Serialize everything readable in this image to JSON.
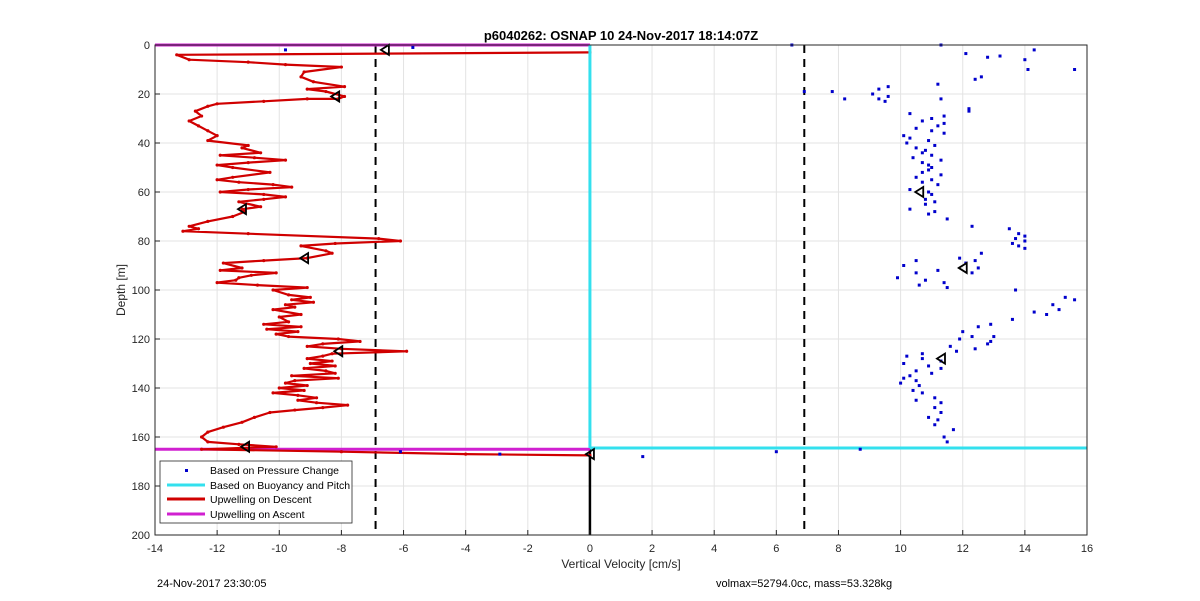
{
  "chart_data": {
    "type": "scatter",
    "title": "p6040262: OSNAP 10 24-Nov-2017 18:14:07Z",
    "xlabel": "Vertical Velocity [cm/s]",
    "ylabel": "Depth [m]",
    "xlim": [
      -14,
      16
    ],
    "ylim": [
      0,
      200
    ],
    "y_reversed": true,
    "grid": true,
    "xticks": [
      -14,
      -12,
      -10,
      -8,
      -6,
      -4,
      -2,
      0,
      2,
      4,
      6,
      8,
      10,
      12,
      14,
      16
    ],
    "yticks": [
      0,
      20,
      40,
      60,
      80,
      100,
      120,
      140,
      160,
      180,
      200
    ],
    "legend": {
      "placement": "bottom-left",
      "entries": [
        {
          "label": "Based on Pressure Change",
          "color": "#0000cc",
          "style": "dot"
        },
        {
          "label": "Based on Buoyancy and Pitch",
          "color": "#33e0ee",
          "style": "line"
        },
        {
          "label": "Upwelling on Descent",
          "color": "#d00000",
          "style": "line"
        },
        {
          "label": "Upwelling on Ascent",
          "color": "#d020d0",
          "style": "line"
        }
      ]
    },
    "reference_lines": {
      "vertical_dashed": [
        -6.9,
        6.9
      ],
      "horizontal_ascent_depths": [
        0,
        165
      ],
      "buoyancy_pitch_depth": 164.5
    },
    "series": [
      {
        "name": "Upwelling on Descent",
        "color": "#d00000",
        "points": [
          [
            0,
            3
          ],
          [
            -13.3,
            4
          ],
          [
            -12.9,
            6
          ],
          [
            -11,
            7
          ],
          [
            -9.8,
            8
          ],
          [
            -8,
            9
          ],
          [
            -9.2,
            11
          ],
          [
            -9.3,
            13
          ],
          [
            -8.9,
            15
          ],
          [
            -7.9,
            17
          ],
          [
            -9.1,
            18
          ],
          [
            -8.5,
            19
          ],
          [
            -7.9,
            21
          ],
          [
            -8.1,
            22
          ],
          [
            -9.1,
            22
          ],
          [
            -10.5,
            23
          ],
          [
            -12,
            24
          ],
          [
            -12.3,
            25
          ],
          [
            -12.7,
            27
          ],
          [
            -12.5,
            29
          ],
          [
            -12.9,
            31
          ],
          [
            -12.6,
            33
          ],
          [
            -12.3,
            35
          ],
          [
            -12,
            37
          ],
          [
            -12.3,
            39
          ],
          [
            -11,
            41
          ],
          [
            -11.2,
            42
          ],
          [
            -10.6,
            44
          ],
          [
            -11.9,
            45
          ],
          [
            -10.8,
            46
          ],
          [
            -9.8,
            47
          ],
          [
            -11,
            48
          ],
          [
            -12,
            49
          ],
          [
            -11.5,
            50
          ],
          [
            -10.3,
            52
          ],
          [
            -11.5,
            54
          ],
          [
            -12,
            55
          ],
          [
            -11.3,
            56
          ],
          [
            -10.2,
            57
          ],
          [
            -9.6,
            58
          ],
          [
            -11,
            59
          ],
          [
            -11.9,
            60
          ],
          [
            -10.5,
            61
          ],
          [
            -9.8,
            62
          ],
          [
            -10.5,
            63
          ],
          [
            -11.3,
            64
          ],
          [
            -10.6,
            66
          ],
          [
            -11.2,
            67
          ],
          [
            -11.1,
            68
          ],
          [
            -11.5,
            70
          ],
          [
            -12.3,
            72
          ],
          [
            -12.9,
            74
          ],
          [
            -12.6,
            75
          ],
          [
            -13.1,
            76
          ],
          [
            -11,
            77
          ],
          [
            -6.8,
            79
          ],
          [
            -6.1,
            80
          ],
          [
            -8.2,
            81
          ],
          [
            -9.3,
            82
          ],
          [
            -8.5,
            84
          ],
          [
            -8.3,
            85
          ],
          [
            -9.1,
            87
          ],
          [
            -10.5,
            88
          ],
          [
            -11.8,
            89
          ],
          [
            -11.2,
            91
          ],
          [
            -11.9,
            92
          ],
          [
            -10.1,
            93
          ],
          [
            -10.9,
            94
          ],
          [
            -11.3,
            95
          ],
          [
            -11.4,
            96
          ],
          [
            -12,
            97
          ],
          [
            -10.7,
            98
          ],
          [
            -9.1,
            99
          ],
          [
            -10.2,
            100
          ],
          [
            -9.7,
            102
          ],
          [
            -9,
            103
          ],
          [
            -9.6,
            104
          ],
          [
            -8.9,
            105
          ],
          [
            -9.8,
            106
          ],
          [
            -9.5,
            107
          ],
          [
            -10.2,
            108
          ],
          [
            -9.3,
            110
          ],
          [
            -10,
            111
          ],
          [
            -9.7,
            113
          ],
          [
            -10.5,
            114
          ],
          [
            -9.3,
            115
          ],
          [
            -10.4,
            116
          ],
          [
            -9.4,
            117
          ],
          [
            -10.1,
            118
          ],
          [
            -9.7,
            119
          ],
          [
            -8.1,
            120
          ],
          [
            -7.4,
            121
          ],
          [
            -8.6,
            122
          ],
          [
            -9.1,
            123
          ],
          [
            -8,
            124
          ],
          [
            -5.9,
            125
          ],
          [
            -8.3,
            126
          ],
          [
            -8.6,
            127
          ],
          [
            -9.1,
            128
          ],
          [
            -8.3,
            129
          ],
          [
            -9,
            130
          ],
          [
            -8.2,
            131
          ],
          [
            -9.2,
            132
          ],
          [
            -8.5,
            133
          ],
          [
            -8.2,
            134
          ],
          [
            -9.6,
            135
          ],
          [
            -8.1,
            136
          ],
          [
            -9.5,
            137
          ],
          [
            -9.8,
            138
          ],
          [
            -9.1,
            139
          ],
          [
            -10,
            140
          ],
          [
            -9.2,
            141
          ],
          [
            -10.2,
            142
          ],
          [
            -9.4,
            143
          ],
          [
            -8.8,
            144
          ],
          [
            -9.4,
            145
          ],
          [
            -8.8,
            146
          ],
          [
            -7.8,
            147
          ],
          [
            -8.6,
            148
          ],
          [
            -9.5,
            149
          ],
          [
            -10.3,
            150
          ],
          [
            -10.8,
            152
          ],
          [
            -11.2,
            154
          ],
          [
            -11.8,
            156
          ],
          [
            -12.3,
            158
          ],
          [
            -12.5,
            160
          ],
          [
            -12.3,
            162
          ],
          [
            -11.3,
            163
          ],
          [
            -10.1,
            164
          ],
          [
            -12.5,
            165
          ],
          [
            -8,
            166
          ],
          [
            -4,
            167
          ],
          [
            0,
            167.5
          ]
        ]
      },
      {
        "name": "Based on Pressure Change",
        "color": "#0000cc",
        "points": [
          [
            -9.8,
            2
          ],
          [
            -5.7,
            1
          ],
          [
            6.5,
            0
          ],
          [
            11.3,
            0
          ],
          [
            14.3,
            2
          ],
          [
            12.1,
            3.5
          ],
          [
            13.2,
            4.5
          ],
          [
            12.8,
            5
          ],
          [
            14,
            6
          ],
          [
            15.6,
            10
          ],
          [
            14.1,
            10
          ],
          [
            12.6,
            13
          ],
          [
            12.4,
            14
          ],
          [
            11.2,
            16
          ],
          [
            9.6,
            17
          ],
          [
            9.3,
            18
          ],
          [
            7.8,
            19
          ],
          [
            6.9,
            19
          ],
          [
            9.1,
            20
          ],
          [
            9.6,
            21
          ],
          [
            8.2,
            22
          ],
          [
            9.3,
            22
          ],
          [
            11.3,
            22
          ],
          [
            9.5,
            23
          ],
          [
            12.2,
            26
          ],
          [
            12.2,
            27
          ],
          [
            10.3,
            28
          ],
          [
            11.4,
            29
          ],
          [
            11,
            30
          ],
          [
            10.7,
            31
          ],
          [
            11.4,
            32
          ],
          [
            11.2,
            33
          ],
          [
            10.5,
            34
          ],
          [
            11,
            35
          ],
          [
            11.4,
            36
          ],
          [
            10.1,
            37
          ],
          [
            10.3,
            38
          ],
          [
            10.9,
            39
          ],
          [
            10.2,
            40
          ],
          [
            11.1,
            41
          ],
          [
            10.5,
            42
          ],
          [
            10.8,
            43
          ],
          [
            10.7,
            44
          ],
          [
            11,
            45
          ],
          [
            10.4,
            46
          ],
          [
            11.3,
            47
          ],
          [
            10.7,
            48
          ],
          [
            10.9,
            49
          ],
          [
            11,
            50
          ],
          [
            10.9,
            51
          ],
          [
            10.7,
            52
          ],
          [
            11.3,
            53
          ],
          [
            10.5,
            54
          ],
          [
            11,
            55
          ],
          [
            10.7,
            56
          ],
          [
            11.2,
            57
          ],
          [
            10.3,
            59
          ],
          [
            10.9,
            60
          ],
          [
            11,
            61
          ],
          [
            10.8,
            63
          ],
          [
            11.1,
            64
          ],
          [
            10.8,
            65
          ],
          [
            10.3,
            67
          ],
          [
            11.1,
            68
          ],
          [
            10.9,
            69
          ],
          [
            11.5,
            71
          ],
          [
            12.3,
            74
          ],
          [
            13.5,
            75
          ],
          [
            13.8,
            77
          ],
          [
            14,
            78
          ],
          [
            13.7,
            79
          ],
          [
            14,
            80
          ],
          [
            13.6,
            81
          ],
          [
            13.8,
            82
          ],
          [
            14,
            83
          ],
          [
            12.6,
            85
          ],
          [
            11.9,
            87
          ],
          [
            12.4,
            88
          ],
          [
            10.5,
            88
          ],
          [
            12.1,
            89
          ],
          [
            10.1,
            90
          ],
          [
            12.5,
            91
          ],
          [
            11.2,
            92
          ],
          [
            10.5,
            93
          ],
          [
            12.3,
            93
          ],
          [
            9.9,
            95
          ],
          [
            10.8,
            96
          ],
          [
            11.4,
            97
          ],
          [
            10.6,
            98
          ],
          [
            11.5,
            99
          ],
          [
            13.7,
            100
          ],
          [
            15.3,
            103
          ],
          [
            15.6,
            104
          ],
          [
            14.9,
            106
          ],
          [
            15.1,
            108
          ],
          [
            14.3,
            109
          ],
          [
            14.7,
            110
          ],
          [
            13.6,
            112
          ],
          [
            12.9,
            114
          ],
          [
            12.5,
            115
          ],
          [
            12,
            117
          ],
          [
            12.3,
            119
          ],
          [
            13,
            119
          ],
          [
            11.9,
            120
          ],
          [
            12.9,
            121
          ],
          [
            12.8,
            122
          ],
          [
            11.6,
            123
          ],
          [
            12.4,
            124
          ],
          [
            11.8,
            125
          ],
          [
            10.7,
            126
          ],
          [
            10.2,
            127
          ],
          [
            10.7,
            128
          ],
          [
            11.3,
            129
          ],
          [
            10.1,
            130
          ],
          [
            10.9,
            131
          ],
          [
            11.3,
            132
          ],
          [
            10.5,
            133
          ],
          [
            11,
            134
          ],
          [
            10.3,
            135
          ],
          [
            10.1,
            136
          ],
          [
            10.5,
            137
          ],
          [
            10,
            138
          ],
          [
            10.6,
            139
          ],
          [
            10.4,
            141
          ],
          [
            10.7,
            142
          ],
          [
            11.1,
            144
          ],
          [
            10.5,
            145
          ],
          [
            11.3,
            146
          ],
          [
            11.1,
            148
          ],
          [
            11.3,
            150
          ],
          [
            10.9,
            152
          ],
          [
            11.2,
            153
          ],
          [
            11.1,
            155
          ],
          [
            11.7,
            157
          ],
          [
            11.4,
            160
          ],
          [
            11.5,
            162
          ],
          [
            -6.1,
            166
          ],
          [
            -2.9,
            167
          ],
          [
            1.7,
            168
          ],
          [
            6,
            166
          ],
          [
            8.7,
            165
          ]
        ]
      },
      {
        "name": "Based on Buoyancy and Pitch",
        "color": "#33e0ee",
        "points": [
          [
            0,
            0
          ],
          [
            0,
            164.5
          ],
          [
            16,
            164.5
          ]
        ]
      },
      {
        "name": "Upwelling on Ascent",
        "color": "#d020d0",
        "points": [
          [
            -14,
            0
          ],
          [
            0,
            0
          ],
          [
            0,
            165
          ],
          [
            -14,
            165
          ]
        ]
      }
    ],
    "markers": [
      [
        -6.6,
        2
      ],
      [
        -8.2,
        21
      ],
      [
        -11.2,
        67
      ],
      [
        -9.2,
        87
      ],
      [
        -8.1,
        125
      ],
      [
        -11.1,
        164
      ],
      [
        0,
        167
      ],
      [
        10.6,
        60
      ],
      [
        12,
        91
      ],
      [
        11.3,
        128
      ]
    ]
  },
  "footer": {
    "left": "24-Nov-2017 23:30:05",
    "right": "volmax=52794.0cc, mass=53.328kg"
  }
}
